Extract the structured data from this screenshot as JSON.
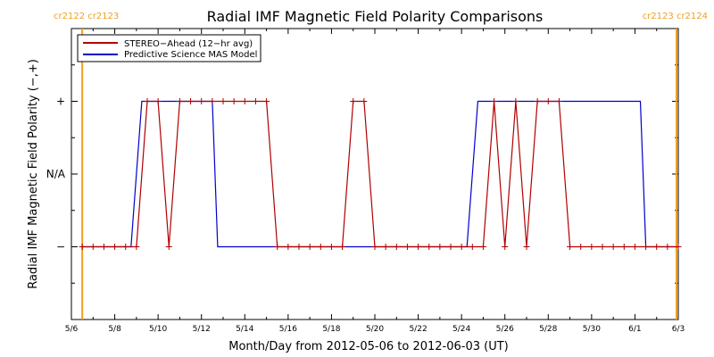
{
  "chart_data": {
    "type": "line",
    "title": "Radial IMF Magnetic Field Polarity Comparisons",
    "xlabel": "Month/Day from 2012-05-06 to 2012-06-03 (UT)",
    "ylabel": "Radial IMF Magnetic Field Polarity (−,+)",
    "xlim": [
      "2012-05-06",
      "2012-06-03"
    ],
    "y_levels": [
      "−",
      "N/A",
      "+"
    ],
    "ylim": [
      -2,
      2
    ],
    "grid": false,
    "legend_position": "top-left",
    "x_tick_labels": [
      {
        "date": "2012-05-06",
        "label": "5/6"
      },
      {
        "date": "2012-05-08",
        "label": "5/8"
      },
      {
        "date": "2012-05-10",
        "label": "5/10"
      },
      {
        "date": "2012-05-12",
        "label": "5/12"
      },
      {
        "date": "2012-05-14",
        "label": "5/14"
      },
      {
        "date": "2012-05-16",
        "label": "5/16"
      },
      {
        "date": "2012-05-18",
        "label": "5/18"
      },
      {
        "date": "2012-05-20",
        "label": "5/20"
      },
      {
        "date": "2012-05-22",
        "label": "5/22"
      },
      {
        "date": "2012-05-24",
        "label": "5/24"
      },
      {
        "date": "2012-05-26",
        "label": "5/26"
      },
      {
        "date": "2012-05-28",
        "label": "5/28"
      },
      {
        "date": "2012-05-30",
        "label": "5/30"
      },
      {
        "date": "2012-06-01",
        "label": "6/1"
      },
      {
        "date": "2012-06-03",
        "label": "6/3"
      }
    ],
    "carrington_markers": [
      {
        "date": "2012-05-06 12:00",
        "label": "cr2122 cr2123",
        "side": "left"
      },
      {
        "date": "2012-06-02 22:00",
        "label": "cr2123 cr2124",
        "side": "right"
      }
    ],
    "series": [
      {
        "name": "STEREO−Ahead (12−hr avg)",
        "color": "#b00000",
        "marker": "+",
        "points": [
          [
            "2012-05-06 12:00",
            -1
          ],
          [
            "2012-05-07 00:00",
            -1
          ],
          [
            "2012-05-07 12:00",
            -1
          ],
          [
            "2012-05-08 00:00",
            -1
          ],
          [
            "2012-05-08 12:00",
            -1
          ],
          [
            "2012-05-09 00:00",
            -1
          ],
          [
            "2012-05-09 12:00",
            1
          ],
          [
            "2012-05-10 00:00",
            1
          ],
          [
            "2012-05-10 12:00",
            -1
          ],
          [
            "2012-05-11 00:00",
            1
          ],
          [
            "2012-05-11 12:00",
            1
          ],
          [
            "2012-05-12 00:00",
            1
          ],
          [
            "2012-05-12 12:00",
            1
          ],
          [
            "2012-05-13 00:00",
            1
          ],
          [
            "2012-05-13 12:00",
            1
          ],
          [
            "2012-05-14 00:00",
            1
          ],
          [
            "2012-05-14 12:00",
            1
          ],
          [
            "2012-05-15 00:00",
            1
          ],
          [
            "2012-05-15 12:00",
            -1
          ],
          [
            "2012-05-16 00:00",
            -1
          ],
          [
            "2012-05-16 12:00",
            -1
          ],
          [
            "2012-05-17 00:00",
            -1
          ],
          [
            "2012-05-17 12:00",
            -1
          ],
          [
            "2012-05-18 00:00",
            -1
          ],
          [
            "2012-05-18 12:00",
            -1
          ],
          [
            "2012-05-19 00:00",
            1
          ],
          [
            "2012-05-19 12:00",
            1
          ],
          [
            "2012-05-20 00:00",
            -1
          ],
          [
            "2012-05-20 12:00",
            -1
          ],
          [
            "2012-05-21 00:00",
            -1
          ],
          [
            "2012-05-21 12:00",
            -1
          ],
          [
            "2012-05-22 00:00",
            -1
          ],
          [
            "2012-05-22 12:00",
            -1
          ],
          [
            "2012-05-23 00:00",
            -1
          ],
          [
            "2012-05-23 12:00",
            -1
          ],
          [
            "2012-05-24 00:00",
            -1
          ],
          [
            "2012-05-24 12:00",
            -1
          ],
          [
            "2012-05-25 00:00",
            -1
          ],
          [
            "2012-05-25 12:00",
            1
          ],
          [
            "2012-05-26 00:00",
            -1
          ],
          [
            "2012-05-26 12:00",
            1
          ],
          [
            "2012-05-27 00:00",
            -1
          ],
          [
            "2012-05-27 12:00",
            1
          ],
          [
            "2012-05-28 00:00",
            1
          ],
          [
            "2012-05-28 12:00",
            1
          ],
          [
            "2012-05-29 00:00",
            -1
          ],
          [
            "2012-05-29 12:00",
            -1
          ],
          [
            "2012-05-30 00:00",
            -1
          ],
          [
            "2012-05-30 12:00",
            -1
          ],
          [
            "2012-05-31 00:00",
            -1
          ],
          [
            "2012-05-31 12:00",
            -1
          ],
          [
            "2012-06-01 00:00",
            -1
          ],
          [
            "2012-06-01 12:00",
            -1
          ],
          [
            "2012-06-02 00:00",
            -1
          ],
          [
            "2012-06-02 12:00",
            -1
          ],
          [
            "2012-06-03 00:00",
            -1
          ]
        ]
      },
      {
        "name": "Predictive Science MAS Model",
        "color": "#0000cc",
        "marker": "",
        "points": [
          [
            "2012-05-06 12:00",
            -1
          ],
          [
            "2012-05-08 18:00",
            -1
          ],
          [
            "2012-05-09 06:00",
            1
          ],
          [
            "2012-05-12 12:00",
            1
          ],
          [
            "2012-05-12 18:00",
            -1
          ],
          [
            "2012-05-24 06:00",
            -1
          ],
          [
            "2012-05-24 18:00",
            1
          ],
          [
            "2012-06-01 06:00",
            1
          ],
          [
            "2012-06-01 12:00",
            -1
          ],
          [
            "2012-06-03 00:00",
            -1
          ]
        ]
      }
    ]
  }
}
